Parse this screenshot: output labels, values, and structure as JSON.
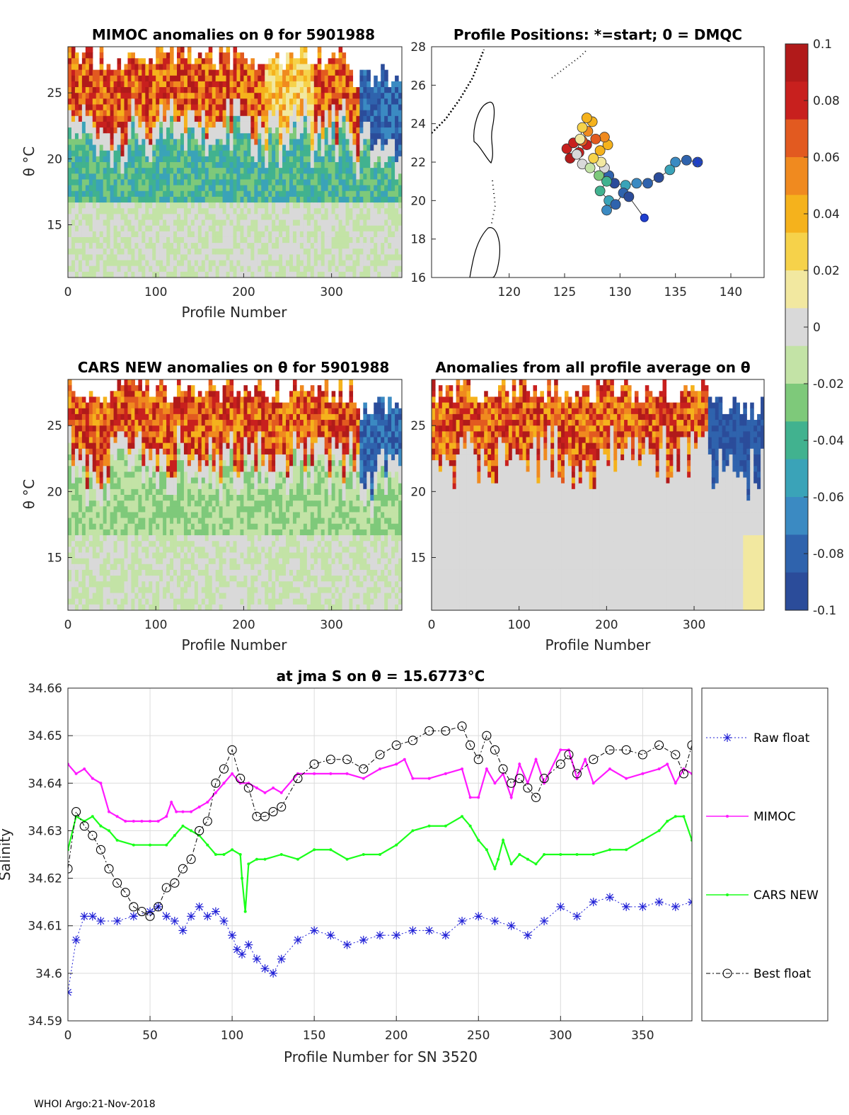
{
  "footer": "WHOI Argo:21-Nov-2018",
  "colors": {
    "raw": "#1f1fd6",
    "mimoc": "#ff1aff",
    "cars": "#1aff1a",
    "best": "#000000",
    "colormap": [
      "#2b4c9a",
      "#2f63ad",
      "#3b8ac2",
      "#3aa3b8",
      "#41b28f",
      "#7ec97a",
      "#c3e3a6",
      "#d9d9d9",
      "#f2e8a0",
      "#f6d24a",
      "#f5b21c",
      "#f08a1f",
      "#e25a20",
      "#c8201e",
      "#b11a1a"
    ]
  },
  "panels": {
    "mimoc": {
      "title": "MIMOC anomalies on θ  for 5901988",
      "xlabel": "Profile Number",
      "ylabel": "θ °C"
    },
    "positions": {
      "title": "Profile Positions: *=start; 0 = DMQC"
    },
    "cars": {
      "title": "CARS NEW anomalies on θ for 5901988",
      "xlabel": "Profile Number",
      "ylabel": "θ °C"
    },
    "allavg": {
      "title": "Anomalies from all profile average on θ",
      "xlabel": "Profile Number"
    }
  },
  "chart_data": [
    {
      "type": "heatmap",
      "id": "mimoc",
      "title": "MIMOC anomalies on θ  for 5901988",
      "xlabel": "Profile Number",
      "ylabel": "θ °C",
      "xlim": [
        0,
        380
      ],
      "ylim": [
        11,
        28.5
      ],
      "xticks": [
        0,
        100,
        200,
        300
      ],
      "yticks": [
        15,
        20,
        25
      ]
    },
    {
      "type": "scatter",
      "id": "positions",
      "title": "Profile Positions: *=start; 0 = DMQC",
      "xlim": [
        113,
        143
      ],
      "ylim": [
        16,
        28
      ],
      "xticks": [
        120,
        125,
        130,
        135,
        140
      ],
      "yticks": [
        16,
        18,
        20,
        22,
        24,
        26,
        28
      ],
      "start": [
        137.0,
        22.0
      ],
      "track": [
        [
          137.0,
          22.0
        ],
        [
          136.0,
          22.1
        ],
        [
          135.0,
          22.0
        ],
        [
          134.5,
          21.6
        ],
        [
          133.5,
          21.2
        ],
        [
          132.5,
          20.9
        ],
        [
          131.5,
          20.9
        ],
        [
          130.5,
          20.8
        ],
        [
          129.5,
          20.9
        ],
        [
          129.0,
          21.3
        ],
        [
          128.6,
          21.7
        ],
        [
          128.3,
          22.0
        ],
        [
          127.6,
          22.2
        ],
        [
          128.2,
          22.6
        ],
        [
          128.9,
          22.9
        ],
        [
          128.6,
          23.3
        ],
        [
          127.8,
          23.2
        ],
        [
          127.0,
          22.9
        ],
        [
          126.3,
          22.5
        ],
        [
          125.5,
          22.2
        ],
        [
          125.2,
          22.7
        ],
        [
          125.8,
          23.0
        ],
        [
          126.6,
          23.1
        ],
        [
          127.1,
          23.6
        ],
        [
          127.5,
          24.1
        ],
        [
          127.0,
          24.3
        ],
        [
          126.6,
          23.8
        ],
        [
          126.4,
          23.2
        ],
        [
          126.1,
          22.4
        ],
        [
          126.6,
          21.9
        ],
        [
          127.3,
          21.7
        ],
        [
          128.1,
          21.3
        ],
        [
          128.8,
          21.0
        ],
        [
          128.2,
          20.5
        ],
        [
          129.0,
          20.0
        ],
        [
          128.8,
          19.5
        ],
        [
          129.6,
          19.8
        ],
        [
          130.3,
          20.4
        ],
        [
          130.8,
          20.2
        ]
      ],
      "dmqc_end": [
        132.2,
        19.1
      ]
    },
    {
      "type": "heatmap",
      "id": "cars",
      "title": "CARS NEW anomalies on θ for 5901988",
      "xlabel": "Profile Number",
      "ylabel": "θ °C",
      "xlim": [
        0,
        380
      ],
      "ylim": [
        11,
        28.5
      ],
      "xticks": [
        0,
        100,
        200,
        300
      ],
      "yticks": [
        15,
        20,
        25
      ]
    },
    {
      "type": "heatmap",
      "id": "allavg",
      "title": "Anomalies from all profile average on θ",
      "xlabel": "Profile Number",
      "xlim": [
        0,
        380
      ],
      "ylim": [
        11,
        28.5
      ],
      "xticks": [
        0,
        100,
        200,
        300
      ],
      "yticks": [
        15,
        20,
        25
      ]
    },
    {
      "type": "colorbar",
      "ticks": [
        0.1,
        0.08,
        0.06,
        0.04,
        0.02,
        0,
        -0.02,
        -0.04,
        -0.06,
        -0.08,
        -0.1
      ],
      "tick_labels": [
        "0.1",
        "0.08",
        "0.06",
        "0.04",
        "0.02",
        "0",
        "-0.02",
        "-0.04",
        "-0.06",
        "-0.08",
        "-0.1"
      ],
      "clim": [
        -0.1,
        0.1
      ]
    },
    {
      "type": "line",
      "title": "at jma S on θ = 15.6773°C",
      "xlabel": "Profile Number for SN 3520",
      "ylabel": "Salinity",
      "xlim": [
        0,
        380
      ],
      "ylim": [
        34.59,
        34.66
      ],
      "xticks": [
        0,
        50,
        100,
        150,
        200,
        250,
        300,
        350
      ],
      "xtick_labels": [
        "0",
        "50",
        "100",
        "150",
        "200",
        "250",
        "300",
        "350"
      ],
      "yticks": [
        34.59,
        34.6,
        34.61,
        34.62,
        34.63,
        34.64,
        34.65,
        34.66
      ],
      "ytick_labels": [
        "34.59",
        "34.6",
        "34.61",
        "34.62",
        "34.63",
        "34.64",
        "34.65",
        "34.66"
      ],
      "grid": true,
      "series": [
        {
          "name": "Raw float",
          "marker": "asterisk",
          "x": [
            0,
            5,
            10,
            15,
            20,
            30,
            40,
            50,
            55,
            60,
            65,
            70,
            75,
            80,
            85,
            90,
            95,
            100,
            103,
            106,
            110,
            115,
            120,
            125,
            130,
            140,
            150,
            160,
            170,
            180,
            190,
            200,
            210,
            220,
            230,
            240,
            250,
            260,
            270,
            280,
            290,
            300,
            310,
            320,
            330,
            340,
            350,
            360,
            370,
            380
          ],
          "y": [
            34.596,
            34.607,
            34.612,
            34.612,
            34.611,
            34.611,
            34.612,
            34.613,
            34.614,
            34.612,
            34.611,
            34.609,
            34.612,
            34.614,
            34.612,
            34.613,
            34.611,
            34.608,
            34.605,
            34.604,
            34.606,
            34.603,
            34.601,
            34.6,
            34.603,
            34.607,
            34.609,
            34.608,
            34.606,
            34.607,
            34.608,
            34.608,
            34.609,
            34.609,
            34.608,
            34.611,
            34.612,
            34.611,
            34.61,
            34.608,
            34.611,
            34.614,
            34.612,
            34.615,
            34.616,
            34.614,
            34.614,
            34.615,
            34.614,
            34.615
          ]
        },
        {
          "name": "MIMOC",
          "marker": "dot",
          "x": [
            0,
            5,
            10,
            15,
            20,
            25,
            30,
            35,
            40,
            45,
            50,
            55,
            60,
            63,
            66,
            70,
            75,
            80,
            85,
            90,
            95,
            100,
            105,
            110,
            115,
            120,
            125,
            130,
            140,
            150,
            160,
            170,
            180,
            190,
            200,
            205,
            210,
            220,
            230,
            240,
            245,
            250,
            255,
            260,
            265,
            270,
            275,
            280,
            285,
            290,
            300,
            305,
            310,
            315,
            320,
            330,
            340,
            350,
            360,
            365,
            370,
            375,
            380
          ],
          "y": [
            34.644,
            34.642,
            34.643,
            34.641,
            34.64,
            34.634,
            34.633,
            34.632,
            34.632,
            34.632,
            34.632,
            34.632,
            34.633,
            34.636,
            34.634,
            34.634,
            34.634,
            34.635,
            34.636,
            34.638,
            34.64,
            34.642,
            34.64,
            34.64,
            34.639,
            34.638,
            34.639,
            34.638,
            34.642,
            34.642,
            34.642,
            34.642,
            34.641,
            34.643,
            34.644,
            34.645,
            34.641,
            34.641,
            34.642,
            34.643,
            34.637,
            34.637,
            34.643,
            34.64,
            34.642,
            34.637,
            34.644,
            34.64,
            34.645,
            34.64,
            34.647,
            34.647,
            34.641,
            34.645,
            34.64,
            34.643,
            34.641,
            34.642,
            34.643,
            34.644,
            34.64,
            34.643,
            34.642
          ]
        },
        {
          "name": "CARS NEW",
          "marker": "dot",
          "x": [
            0,
            5,
            10,
            15,
            20,
            25,
            30,
            40,
            50,
            60,
            65,
            70,
            75,
            80,
            85,
            90,
            95,
            100,
            105,
            106,
            108,
            110,
            115,
            120,
            130,
            140,
            150,
            160,
            170,
            180,
            190,
            200,
            210,
            220,
            230,
            240,
            245,
            250,
            255,
            260,
            262,
            265,
            270,
            275,
            280,
            285,
            290,
            300,
            310,
            320,
            330,
            340,
            350,
            360,
            365,
            370,
            375,
            380
          ],
          "y": [
            34.626,
            34.633,
            34.632,
            34.633,
            34.631,
            34.63,
            34.628,
            34.627,
            34.627,
            34.627,
            34.629,
            34.631,
            34.63,
            34.629,
            34.627,
            34.625,
            34.625,
            34.626,
            34.625,
            34.62,
            34.613,
            34.623,
            34.624,
            34.624,
            34.625,
            34.624,
            34.626,
            34.626,
            34.624,
            34.625,
            34.625,
            34.627,
            34.63,
            34.631,
            34.631,
            34.633,
            34.631,
            34.628,
            34.626,
            34.622,
            34.624,
            34.628,
            34.623,
            34.625,
            34.624,
            34.623,
            34.625,
            34.625,
            34.625,
            34.625,
            34.626,
            34.626,
            34.628,
            34.63,
            34.632,
            34.633,
            34.633,
            34.628
          ]
        },
        {
          "name": "Best float",
          "marker": "circle",
          "x": [
            0,
            5,
            10,
            15,
            20,
            25,
            30,
            35,
            40,
            45,
            50,
            55,
            60,
            65,
            70,
            75,
            80,
            85,
            90,
            95,
            100,
            105,
            110,
            115,
            120,
            125,
            130,
            140,
            150,
            160,
            170,
            180,
            190,
            200,
            210,
            220,
            230,
            240,
            245,
            250,
            255,
            260,
            265,
            270,
            275,
            280,
            285,
            290,
            300,
            305,
            310,
            320,
            330,
            340,
            350,
            360,
            370,
            375,
            380
          ],
          "y": [
            34.622,
            34.634,
            34.631,
            34.629,
            34.626,
            34.622,
            34.619,
            34.617,
            34.614,
            34.613,
            34.612,
            34.614,
            34.618,
            34.619,
            34.622,
            34.624,
            34.63,
            34.632,
            34.64,
            34.643,
            34.647,
            34.641,
            34.639,
            34.633,
            34.633,
            34.634,
            34.635,
            34.641,
            34.644,
            34.645,
            34.645,
            34.643,
            34.646,
            34.648,
            34.649,
            34.651,
            34.651,
            34.652,
            34.648,
            34.645,
            34.65,
            34.647,
            34.643,
            34.64,
            34.641,
            34.639,
            34.637,
            34.641,
            34.644,
            34.646,
            34.642,
            34.645,
            34.647,
            34.647,
            34.646,
            34.648,
            34.646,
            34.642,
            34.648
          ]
        }
      ]
    }
  ]
}
